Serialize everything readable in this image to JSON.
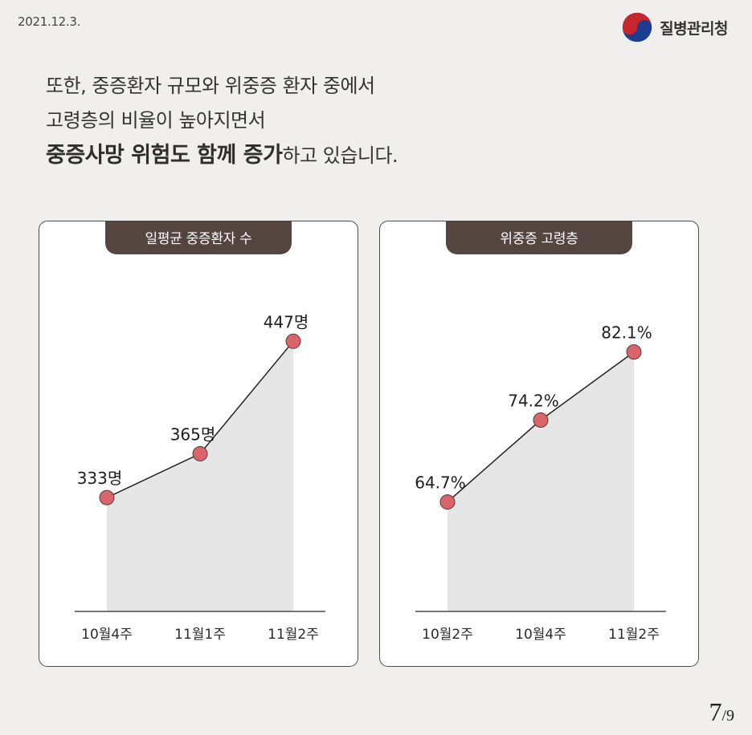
{
  "header": {
    "date": "2021.12.3.",
    "brand": "질병관리청"
  },
  "headline": {
    "line1": "또한, 중증환자 규모와 위중증 환자 중에서",
    "line2": "고령층의 비율이 높아지면서",
    "line3_bold": "중증사망 위험도 함께 증가",
    "line3_rest": "하고 있습니다."
  },
  "chart_data": [
    {
      "type": "area",
      "title": "일평균 중증환자 수",
      "categories": [
        "10월4주",
        "11월1주",
        "11월2주"
      ],
      "values": [
        333,
        365,
        447
      ],
      "data_labels": [
        "333명",
        "365명",
        "447명"
      ],
      "ylim": [
        250,
        470
      ]
    },
    {
      "type": "area",
      "title": "위중증 고령층",
      "categories": [
        "10월2주",
        "10월4주",
        "11월2주"
      ],
      "values": [
        64.7,
        74.2,
        82.1
      ],
      "data_labels": [
        "64.7%",
        "74.2%",
        "82.1%"
      ],
      "ylim": [
        52,
        87
      ]
    }
  ],
  "colors": {
    "area": "#e6e6e6",
    "marker": "#d9646a",
    "tab": "#554540"
  },
  "pagination": {
    "current": "7",
    "total": "/9"
  }
}
